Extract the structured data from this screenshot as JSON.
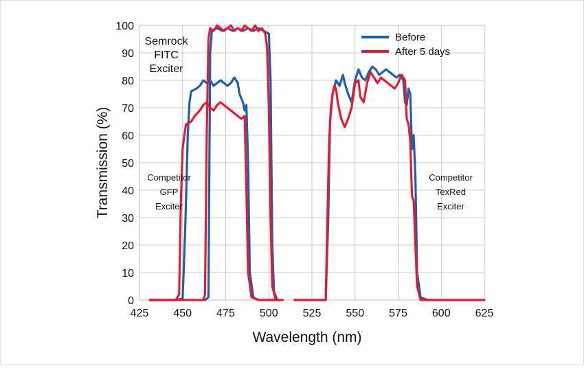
{
  "chart_data": {
    "type": "line",
    "title": "",
    "xlabel": "Wavelength (nm)",
    "ylabel": "Transmission (%)",
    "xlim": [
      425,
      625
    ],
    "ylim": [
      0,
      100
    ],
    "xticks": [
      425,
      450,
      475,
      500,
      525,
      550,
      575,
      600,
      625
    ],
    "yticks": [
      0,
      10,
      20,
      30,
      40,
      50,
      60,
      70,
      80,
      90,
      100
    ],
    "grid": true,
    "legend": {
      "position": "top-right"
    },
    "series": [
      {
        "name": "Before",
        "color": "#1f5fa8",
        "segments": [
          [
            [
              431,
              0
            ],
            [
              446,
              0
            ],
            [
              450,
              0.5
            ],
            [
              451.5,
              25
            ],
            [
              453,
              60
            ],
            [
              454,
              72
            ],
            [
              455,
              76
            ],
            [
              458,
              77
            ],
            [
              460,
              78
            ],
            [
              462,
              80
            ],
            [
              464,
              79
            ],
            [
              466,
              80
            ],
            [
              468,
              78
            ],
            [
              470,
              79
            ],
            [
              472,
              80
            ],
            [
              474,
              79
            ],
            [
              476,
              78
            ],
            [
              478,
              79
            ],
            [
              480,
              81
            ],
            [
              482,
              79
            ],
            [
              483,
              75
            ],
            [
              485,
              72
            ],
            [
              486,
              69
            ],
            [
              487,
              71
            ],
            [
              488,
              50
            ],
            [
              489,
              10
            ],
            [
              491,
              1
            ],
            [
              494,
              0
            ],
            [
              505,
              0
            ]
          ],
          [
            [
              463,
              0
            ],
            [
              465,
              1
            ],
            [
              466,
              90
            ],
            [
              467,
              98
            ],
            [
              470,
              99
            ],
            [
              473,
              98
            ],
            [
              476,
              99
            ],
            [
              479,
              98
            ],
            [
              482,
              99
            ],
            [
              485,
              98
            ],
            [
              488,
              99
            ],
            [
              491,
              98
            ],
            [
              494,
              99
            ],
            [
              497,
              98
            ],
            [
              500,
              97
            ],
            [
              501,
              80
            ],
            [
              502,
              20
            ],
            [
              503,
              3
            ],
            [
              505,
              0
            ],
            [
              508,
              0
            ]
          ],
          [
            [
              515,
              0
            ],
            [
              533,
              0
            ],
            [
              534.5,
              30
            ],
            [
              535.5,
              65
            ],
            [
              537,
              75
            ],
            [
              539,
              80
            ],
            [
              541,
              78
            ],
            [
              543,
              82
            ],
            [
              544,
              79
            ],
            [
              546,
              75
            ],
            [
              548,
              72
            ],
            [
              550,
              80
            ],
            [
              552,
              84
            ],
            [
              554,
              81
            ],
            [
              556,
              80
            ],
            [
              558,
              83
            ],
            [
              560,
              85
            ],
            [
              562,
              84
            ],
            [
              564,
              82
            ],
            [
              566,
              83
            ],
            [
              568,
              84
            ],
            [
              570,
              83
            ],
            [
              572,
              82
            ],
            [
              574,
              81
            ],
            [
              576,
              82
            ],
            [
              578,
              80
            ],
            [
              579,
              72
            ],
            [
              580,
              71
            ],
            [
              581,
              77
            ],
            [
              582,
              75
            ],
            [
              583,
              55
            ],
            [
              584,
              60
            ],
            [
              585,
              45
            ],
            [
              586,
              10
            ],
            [
              588,
              1
            ],
            [
              592,
              0
            ],
            [
              625,
              0
            ]
          ]
        ]
      },
      {
        "name": "After 5 days",
        "color": "#e31b35",
        "segments": [
          [
            [
              431,
              0
            ],
            [
              446,
              0
            ],
            [
              448,
              2
            ],
            [
              449,
              35
            ],
            [
              450,
              55
            ],
            [
              451,
              60
            ],
            [
              452,
              64
            ],
            [
              455,
              65
            ],
            [
              457,
              67
            ],
            [
              460,
              69
            ],
            [
              462,
              71
            ],
            [
              464,
              72
            ],
            [
              466,
              70
            ],
            [
              468,
              69
            ],
            [
              470,
              71
            ],
            [
              472,
              72
            ],
            [
              474,
              71
            ],
            [
              476,
              70
            ],
            [
              478,
              69
            ],
            [
              480,
              68
            ],
            [
              482,
              67
            ],
            [
              484,
              66
            ],
            [
              486,
              67
            ],
            [
              487,
              40
            ],
            [
              488,
              10
            ],
            [
              490,
              1
            ],
            [
              494,
              0
            ],
            [
              505,
              0
            ]
          ],
          [
            [
              431,
              0
            ],
            [
              462,
              0
            ],
            [
              463,
              2
            ],
            [
              464,
              60
            ],
            [
              465,
              95
            ],
            [
              466,
              99
            ],
            [
              468,
              98
            ],
            [
              470,
              100
            ],
            [
              472,
              99
            ],
            [
              474,
              98
            ],
            [
              476,
              99
            ],
            [
              478,
              100
            ],
            [
              480,
              98
            ],
            [
              482,
              99
            ],
            [
              484,
              98
            ],
            [
              486,
              100
            ],
            [
              488,
              99
            ],
            [
              490,
              98
            ],
            [
              492,
              100
            ],
            [
              494,
              98
            ],
            [
              496,
              99
            ],
            [
              498,
              97
            ],
            [
              499,
              92
            ],
            [
              500,
              70
            ],
            [
              501,
              30
            ],
            [
              502,
              5
            ],
            [
              504,
              0
            ],
            [
              508,
              0
            ]
          ],
          [
            [
              515,
              0
            ],
            [
              533,
              0
            ],
            [
              534,
              30
            ],
            [
              535,
              58
            ],
            [
              536,
              70
            ],
            [
              537,
              75
            ],
            [
              538,
              78
            ],
            [
              539,
              77
            ],
            [
              540,
              72
            ],
            [
              542,
              66
            ],
            [
              544,
              63
            ],
            [
              546,
              66
            ],
            [
              548,
              70
            ],
            [
              550,
              79
            ],
            [
              552,
              80
            ],
            [
              553,
              74
            ],
            [
              555,
              72
            ],
            [
              557,
              79
            ],
            [
              559,
              83
            ],
            [
              561,
              81
            ],
            [
              563,
              79
            ],
            [
              565,
              81
            ],
            [
              567,
              80
            ],
            [
              569,
              79
            ],
            [
              571,
              78
            ],
            [
              573,
              77
            ],
            [
              575,
              79
            ],
            [
              577,
              82
            ],
            [
              579,
              80
            ],
            [
              580,
              66
            ],
            [
              581,
              64
            ],
            [
              582,
              58
            ],
            [
              583,
              38
            ],
            [
              584,
              36
            ],
            [
              585,
              20
            ],
            [
              586,
              5
            ],
            [
              588,
              0
            ],
            [
              625,
              0
            ]
          ]
        ]
      }
    ],
    "annotations": {
      "semrock": [
        "Semrock",
        "FITC",
        "Exciter"
      ],
      "gfp": [
        "Competitor",
        "GFP",
        "Exciter"
      ],
      "texred": [
        "Competitor",
        "TexRed",
        "Exciter"
      ]
    }
  }
}
